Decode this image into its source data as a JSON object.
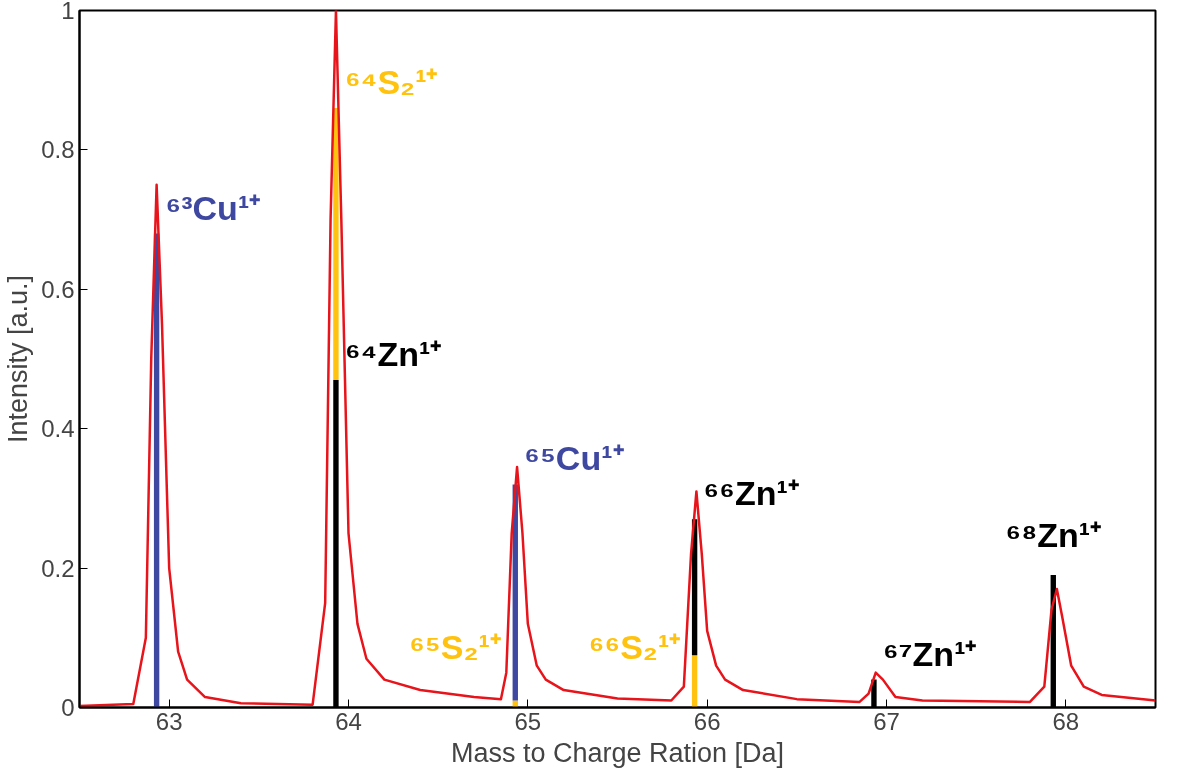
{
  "chart_data": {
    "type": "bar",
    "stacked": true,
    "xlabel": "Mass to Charge Ration [Da]",
    "ylabel": "Intensity [a.u.]",
    "x": [
      62.93,
      63.93,
      64.93,
      65.93,
      66.93,
      67.93
    ],
    "series": [
      {
        "name": "⁶⁴Zn¹⁺",
        "color": "#000000",
        "values": [
          null,
          0.47,
          null,
          null,
          null,
          null
        ]
      },
      {
        "name": "⁶⁴S₂¹⁺",
        "color": "#ffc20e",
        "values": [
          null,
          0.39,
          null,
          null,
          null,
          null
        ]
      },
      {
        "name": "⁶⁵S₂¹⁺",
        "color": "#ffc20e",
        "values": [
          null,
          null,
          0.01,
          null,
          null,
          null
        ]
      },
      {
        "name": "⁶⁵Cu¹⁺",
        "color": "#3f48a0",
        "values": [
          null,
          null,
          0.31,
          null,
          null,
          null
        ]
      },
      {
        "name": "⁶⁶S₂¹⁺",
        "color": "#ffc20e",
        "values": [
          null,
          null,
          null,
          0.075,
          null,
          null
        ]
      },
      {
        "name": "⁶⁶Zn¹⁺",
        "color": "#000000",
        "values": [
          null,
          null,
          null,
          0.195,
          null,
          null
        ]
      },
      {
        "name": "⁶³Cu¹⁺",
        "color": "#3f48a0",
        "values": [
          0.68,
          null,
          null,
          null,
          null,
          null
        ]
      },
      {
        "name": "⁶⁷Zn¹⁺",
        "color": "#000000",
        "values": [
          null,
          null,
          null,
          null,
          0.04,
          null
        ]
      },
      {
        "name": "⁶⁸Zn¹⁺",
        "color": "#000000",
        "values": [
          null,
          null,
          null,
          null,
          null,
          0.19
        ]
      },
      {
        "type": "line",
        "color": "#e8141b",
        "x": [
          62.5,
          62.8,
          62.87,
          62.9,
          62.93,
          62.96,
          63.0,
          63.05,
          63.1,
          63.2,
          63.4,
          63.8,
          63.87,
          63.9,
          63.93,
          63.96,
          64.0,
          64.05,
          64.1,
          64.2,
          64.4,
          64.7,
          64.85,
          64.88,
          64.91,
          64.94,
          64.97,
          65.0,
          65.05,
          65.1,
          65.2,
          65.5,
          65.8,
          65.87,
          65.91,
          65.94,
          65.97,
          66.0,
          66.05,
          66.1,
          66.2,
          66.5,
          66.85,
          66.9,
          66.94,
          66.98,
          67.05,
          67.2,
          67.8,
          67.88,
          67.92,
          67.95,
          67.98,
          68.03,
          68.1,
          68.2,
          68.5
        ],
        "values": [
          0.002,
          0.005,
          0.1,
          0.5,
          0.75,
          0.55,
          0.2,
          0.08,
          0.04,
          0.015,
          0.006,
          0.004,
          0.15,
          0.7,
          1.0,
          0.7,
          0.25,
          0.12,
          0.07,
          0.04,
          0.025,
          0.015,
          0.012,
          0.05,
          0.25,
          0.345,
          0.25,
          0.12,
          0.06,
          0.04,
          0.025,
          0.013,
          0.01,
          0.03,
          0.22,
          0.31,
          0.22,
          0.11,
          0.06,
          0.04,
          0.025,
          0.012,
          0.008,
          0.02,
          0.05,
          0.04,
          0.015,
          0.01,
          0.008,
          0.03,
          0.14,
          0.17,
          0.13,
          0.06,
          0.03,
          0.018,
          0.01
        ]
      }
    ],
    "xlim": [
      62.5,
      68.5
    ],
    "ylim": [
      0,
      1
    ],
    "xticks": [
      63,
      64,
      65,
      66,
      67,
      68
    ],
    "yticks": [
      0,
      0.2,
      0.4,
      0.6,
      0.8,
      1
    ]
  }
}
